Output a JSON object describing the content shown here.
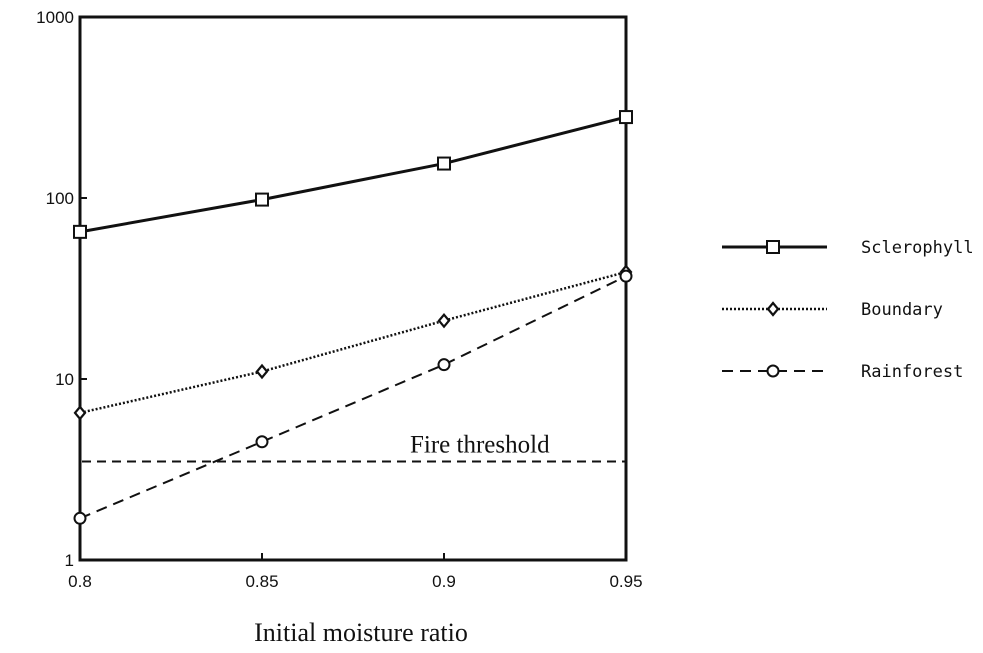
{
  "chart_data": {
    "type": "line",
    "xlabel": "Initial moisture ratio",
    "ylabel": "",
    "yscale": "log",
    "xlim": [
      0.8,
      0.95
    ],
    "ylim": [
      1,
      1000
    ],
    "x": [
      0.8,
      0.85,
      0.9,
      0.95
    ],
    "x_tick_labels": [
      "0.8",
      "0.85",
      "0.9",
      "0.95"
    ],
    "y_ticks": [
      1,
      10,
      100,
      1000
    ],
    "y_tick_labels": [
      "1",
      "10",
      "100",
      "1000"
    ],
    "grid": false,
    "legend_position": "right",
    "series": [
      {
        "name": "Sclerophyll",
        "values": [
          65,
          98,
          155,
          280
        ],
        "line_style": "solid",
        "marker": "square"
      },
      {
        "name": "Boundary",
        "values": [
          6.5,
          11,
          21,
          39
        ],
        "line_style": "dotted",
        "marker": "diamond"
      },
      {
        "name": "Rainforest",
        "values": [
          1.7,
          4.5,
          12,
          37
        ],
        "line_style": "dashed",
        "marker": "circle"
      }
    ],
    "annotations": [
      {
        "text": "Fire threshold",
        "y": 3.5,
        "line_style": "dashed"
      }
    ]
  }
}
